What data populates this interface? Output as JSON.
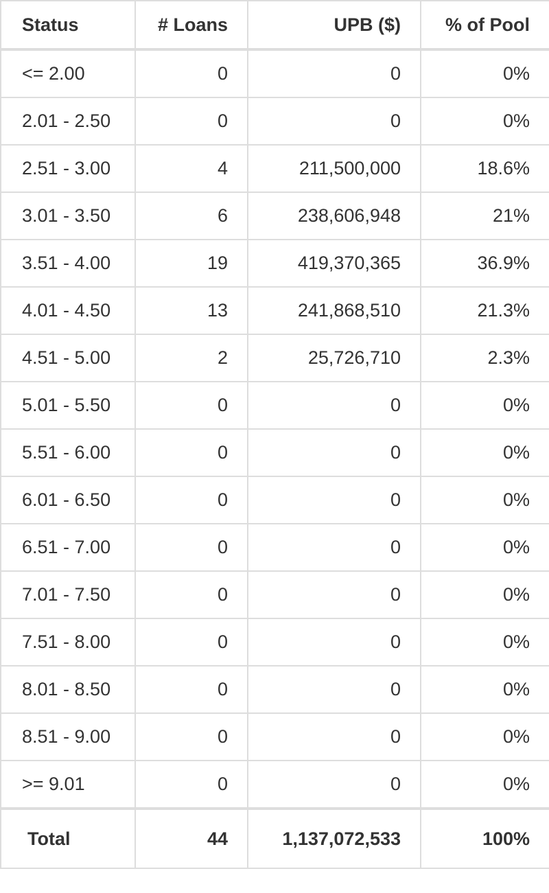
{
  "table": {
    "headers": [
      "Status",
      "# Loans",
      "UPB ($)",
      "% of Pool"
    ],
    "rows": [
      {
        "status": "<= 2.00",
        "loans": "0",
        "upb": "0",
        "pct": "0%"
      },
      {
        "status": "2.01 - 2.50",
        "loans": "0",
        "upb": "0",
        "pct": "0%"
      },
      {
        "status": "2.51 - 3.00",
        "loans": "4",
        "upb": "211,500,000",
        "pct": "18.6%"
      },
      {
        "status": "3.01 - 3.50",
        "loans": "6",
        "upb": "238,606,948",
        "pct": "21%"
      },
      {
        "status": "3.51 - 4.00",
        "loans": "19",
        "upb": "419,370,365",
        "pct": "36.9%"
      },
      {
        "status": "4.01 - 4.50",
        "loans": "13",
        "upb": "241,868,510",
        "pct": "21.3%"
      },
      {
        "status": "4.51 - 5.00",
        "loans": "2",
        "upb": "25,726,710",
        "pct": "2.3%"
      },
      {
        "status": "5.01 - 5.50",
        "loans": "0",
        "upb": "0",
        "pct": "0%"
      },
      {
        "status": "5.51 - 6.00",
        "loans": "0",
        "upb": "0",
        "pct": "0%"
      },
      {
        "status": "6.01 - 6.50",
        "loans": "0",
        "upb": "0",
        "pct": "0%"
      },
      {
        "status": "6.51 - 7.00",
        "loans": "0",
        "upb": "0",
        "pct": "0%"
      },
      {
        "status": "7.01 - 7.50",
        "loans": "0",
        "upb": "0",
        "pct": "0%"
      },
      {
        "status": "7.51 - 8.00",
        "loans": "0",
        "upb": "0",
        "pct": "0%"
      },
      {
        "status": "8.01 - 8.50",
        "loans": "0",
        "upb": "0",
        "pct": "0%"
      },
      {
        "status": "8.51 - 9.00",
        "loans": "0",
        "upb": "0",
        "pct": "0%"
      },
      {
        "status": ">= 9.01",
        "loans": "0",
        "upb": "0",
        "pct": "0%"
      }
    ],
    "total": {
      "label": "Total",
      "loans": "44",
      "upb": "1,137,072,533",
      "pct": "100%"
    }
  }
}
